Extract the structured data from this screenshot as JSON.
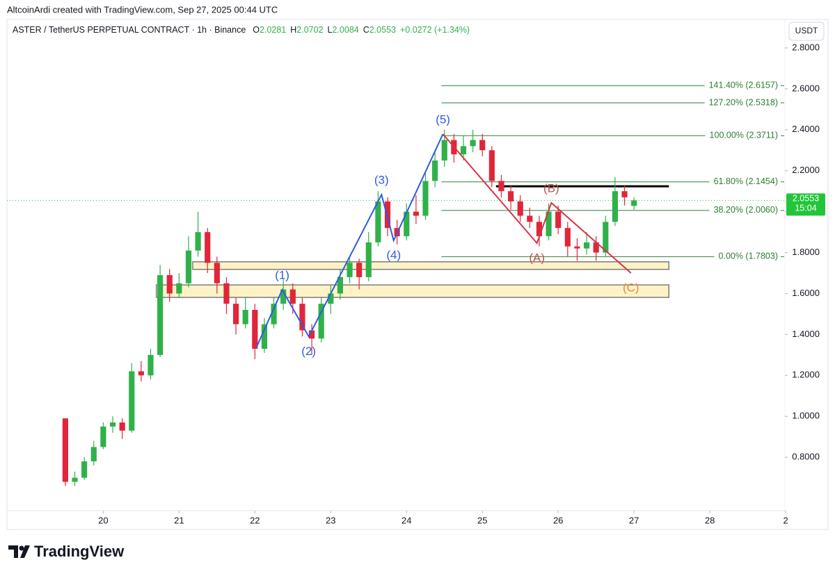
{
  "header": {
    "credit": "AltcoinArdi created with TradingView.com, Sep 27, 2025 00:44 UTC",
    "brand": "TradingView"
  },
  "chart_data": {
    "type": "candlestick",
    "title": "ASTER / TetherUS PERPETUAL CONTRACT · 1h · Binance",
    "legend_keys": [
      "O",
      "H",
      "L",
      "C"
    ],
    "change": "+0.0272 (+1.34%)",
    "currency": "USDT",
    "countdown": "15:04",
    "up_color": "#2fb14a",
    "down_color": "#e0263a",
    "x": [
      19.5,
      19.625,
      19.75,
      19.875,
      20,
      20.125,
      20.25,
      20.375,
      20.5,
      20.625,
      20.75,
      20.875,
      21,
      21.125,
      21.25,
      21.375,
      21.5,
      21.625,
      21.75,
      21.875,
      22,
      22.125,
      22.25,
      22.375,
      22.5,
      22.625,
      22.75,
      22.875,
      23,
      23.125,
      23.25,
      23.375,
      23.5,
      23.625,
      23.75,
      23.875,
      24,
      24.125,
      24.25,
      24.375,
      24.5,
      24.625,
      24.75,
      24.875,
      25,
      25.125,
      25.25,
      25.375,
      25.5,
      25.625,
      25.75,
      25.875,
      26,
      26.125,
      26.25,
      26.375,
      26.5,
      26.625,
      26.75,
      26.875,
      27
    ],
    "open": [
      0.99,
      0.68,
      0.7,
      0.78,
      0.85,
      0.95,
      0.97,
      0.93,
      1.22,
      1.2,
      1.3,
      1.69,
      1.6,
      1.65,
      1.81,
      1.9,
      1.75,
      1.65,
      1.55,
      1.45,
      1.52,
      1.33,
      1.45,
      1.55,
      1.62,
      1.55,
      1.42,
      1.38,
      1.55,
      1.6,
      1.68,
      1.75,
      1.68,
      1.85,
      2.05,
      1.92,
      1.88,
      2.0,
      1.98,
      2.15,
      2.25,
      2.35,
      2.28,
      2.32,
      2.35,
      2.3,
      2.15,
      2.1,
      2.05,
      1.98,
      1.95,
      1.88,
      2.0,
      1.92,
      1.83,
      1.82,
      1.85,
      1.8,
      1.95,
      2.1,
      2.0281
    ],
    "high": [
      0.99,
      0.73,
      0.8,
      0.88,
      0.97,
      1.0,
      0.99,
      1.26,
      1.27,
      1.33,
      1.74,
      1.72,
      1.7,
      1.88,
      2.0,
      1.92,
      1.78,
      1.68,
      1.58,
      1.58,
      1.55,
      1.48,
      1.58,
      1.67,
      1.65,
      1.58,
      1.45,
      1.58,
      1.64,
      1.72,
      1.78,
      1.77,
      1.9,
      2.1,
      2.07,
      1.96,
      2.04,
      2.08,
      2.2,
      2.3,
      2.4,
      2.38,
      2.37,
      2.4,
      2.38,
      2.32,
      2.18,
      2.13,
      2.08,
      2.02,
      1.98,
      2.04,
      2.03,
      1.95,
      1.87,
      1.9,
      1.88,
      1.98,
      2.17,
      2.13,
      2.0702
    ],
    "low": [
      0.66,
      0.66,
      0.69,
      0.76,
      0.84,
      0.92,
      0.89,
      0.92,
      1.17,
      1.18,
      1.29,
      1.56,
      1.58,
      1.63,
      1.78,
      1.7,
      1.6,
      1.5,
      1.4,
      1.43,
      1.28,
      1.31,
      1.43,
      1.52,
      1.5,
      1.39,
      1.3,
      1.36,
      1.5,
      1.57,
      1.65,
      1.62,
      1.66,
      1.83,
      1.88,
      1.84,
      1.86,
      1.94,
      1.96,
      2.12,
      2.22,
      2.24,
      2.25,
      2.29,
      2.27,
      2.12,
      2.07,
      2.01,
      1.95,
      1.92,
      1.83,
      1.86,
      1.89,
      1.78,
      1.76,
      1.79,
      1.76,
      1.78,
      1.93,
      2.03,
      2.0084
    ],
    "close": [
      0.68,
      0.7,
      0.78,
      0.85,
      0.95,
      0.97,
      0.93,
      1.22,
      1.2,
      1.3,
      1.69,
      1.6,
      1.65,
      1.81,
      1.9,
      1.75,
      1.65,
      1.55,
      1.45,
      1.52,
      1.33,
      1.45,
      1.55,
      1.62,
      1.55,
      1.42,
      1.38,
      1.55,
      1.6,
      1.68,
      1.75,
      1.68,
      1.85,
      2.05,
      1.92,
      1.88,
      2.0,
      1.98,
      2.15,
      2.25,
      2.35,
      2.28,
      2.32,
      2.35,
      2.3,
      2.15,
      2.1,
      2.05,
      1.98,
      1.95,
      1.88,
      2.0,
      1.92,
      1.83,
      1.82,
      1.85,
      1.8,
      1.95,
      2.1,
      2.07,
      2.0553
    ],
    "xlim": [
      18.73,
      28.99
    ],
    "xticks": [
      20,
      21,
      22,
      23,
      24,
      25,
      26,
      27,
      28,
      {
        "value": 29,
        "label": "2"
      }
    ],
    "ylim": [
      0.539,
      2.939
    ],
    "yticks": [
      {
        "value": 0.8,
        "label": "0.8000"
      },
      {
        "value": 1.0,
        "label": "1.0000"
      },
      {
        "value": 1.2,
        "label": "1.2000"
      },
      {
        "value": 1.4,
        "label": "1.4000"
      },
      {
        "value": 1.6,
        "label": "1.6000"
      },
      {
        "value": 1.8,
        "label": "1.8000"
      },
      {
        "value": 2.0,
        "label": "2.0000"
      },
      {
        "value": 2.2,
        "label": "2.2000"
      },
      {
        "value": 2.4,
        "label": "2.4000"
      },
      {
        "value": 2.6,
        "label": "2.6000"
      },
      {
        "value": 2.8,
        "label": "2.8000"
      }
    ],
    "fib_color": "#2e7d32",
    "fib_start": 24.46,
    "fib_levels": [
      {
        "value": 2.6157,
        "label": "141.40% (2.6157)"
      },
      {
        "value": 2.5318,
        "label": "127.20% (2.5318)"
      },
      {
        "value": 2.3711,
        "label": "100.00% (2.3711)"
      },
      {
        "value": 2.1454,
        "label": "61.80% (2.1454)"
      },
      {
        "value": 2.006,
        "label": "38.20% (2.0060)"
      },
      {
        "value": 1.7803,
        "label": "0.00% (1.7803)"
      }
    ],
    "zones": [
      {
        "x": [
          21.18,
          27.46
        ],
        "y": [
          1.718,
          1.755
        ]
      },
      {
        "x": [
          20.7,
          27.46
        ],
        "y": [
          1.581,
          1.642
        ]
      }
    ],
    "resistance": {
      "x": [
        25.18,
        27.46
      ],
      "y": 2.124
    },
    "waves": [
      {
        "color": "#2f5be0",
        "label_color": "#2f5be0",
        "x": [
          22.02,
          22.36,
          22.71,
          23.67,
          23.83,
          24.48
        ],
        "y": [
          1.337,
          1.618,
          1.39,
          2.083,
          1.859,
          2.379
        ],
        "labels": [
          null,
          "(1)",
          "(2)",
          "(3)",
          "(4)",
          "(5)"
        ]
      },
      {
        "color": "#d6334a",
        "label_color": "#c0504d",
        "x": [
          24.48,
          25.72,
          25.91,
          26.96
        ],
        "y": [
          2.379,
          1.846,
          2.043,
          1.7
        ],
        "labels": [
          null,
          "(A)",
          "(B)",
          "(C)"
        ]
      }
    ]
  }
}
